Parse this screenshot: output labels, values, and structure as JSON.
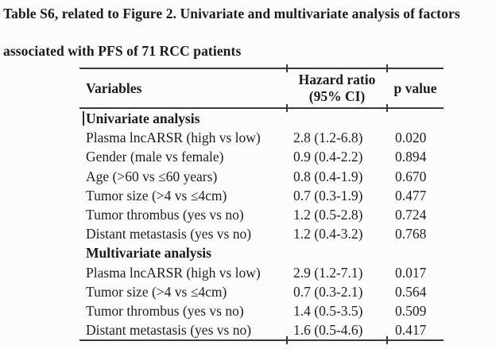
{
  "doc": {
    "title_line1": "Table S6, related to Figure 2. Univariate and multivariate analysis of factors",
    "title_line2": "associated with PFS of 71 RCC patients"
  },
  "table": {
    "header": {
      "variables": "Variables",
      "hazard_ratio_line1": "Hazard ratio",
      "hazard_ratio_line2": "(95% CI)",
      "p_value": "p value"
    },
    "rows": [
      {
        "variable": "Univariate analysis",
        "hr": "",
        "p": ""
      },
      {
        "variable": "Plasma lncARSR (high vs low)",
        "hr": "2.8 (1.2-6.8)",
        "p": "0.020"
      },
      {
        "variable": "Gender (male vs female)",
        "hr": "0.9 (0.4-2.2)",
        "p": "0.894"
      },
      {
        "variable": "Age (>60 vs ≤60 years)",
        "hr": "0.8 (0.4-1.9)",
        "p": "0.670"
      },
      {
        "variable": "Tumor size (>4 vs ≤4cm)",
        "hr": "0.7 (0.3-1.9)",
        "p": "0.477"
      },
      {
        "variable": "Tumor thrombus (yes vs no)",
        "hr": "1.2 (0.5-2.8)",
        "p": "0.724"
      },
      {
        "variable": "Distant metastasis (yes vs no)",
        "hr": "1.2 (0.4-3.2)",
        "p": "0.768"
      },
      {
        "variable": "Multivariate analysis",
        "hr": "",
        "p": ""
      },
      {
        "variable": "Plasma lncARSR (high vs low)",
        "hr": "2.9 (1.2-7.1)",
        "p": "0.017"
      },
      {
        "variable": "Tumor size (>4 vs ≤4cm)",
        "hr": "0.7 (0.3-2.1)",
        "p": "0.564"
      },
      {
        "variable": "Tumor thrombus (yes vs no)",
        "hr": "1.4 (0.5-3.5)",
        "p": "0.509"
      },
      {
        "variable": "Distant metastasis (yes vs no)",
        "hr": "1.6 (0.5-4.6)",
        "p": "0.417"
      }
    ],
    "colors": {
      "text": "#1f1f1f",
      "rule": "#3a3a3a",
      "background": "#fcfcfc"
    }
  }
}
